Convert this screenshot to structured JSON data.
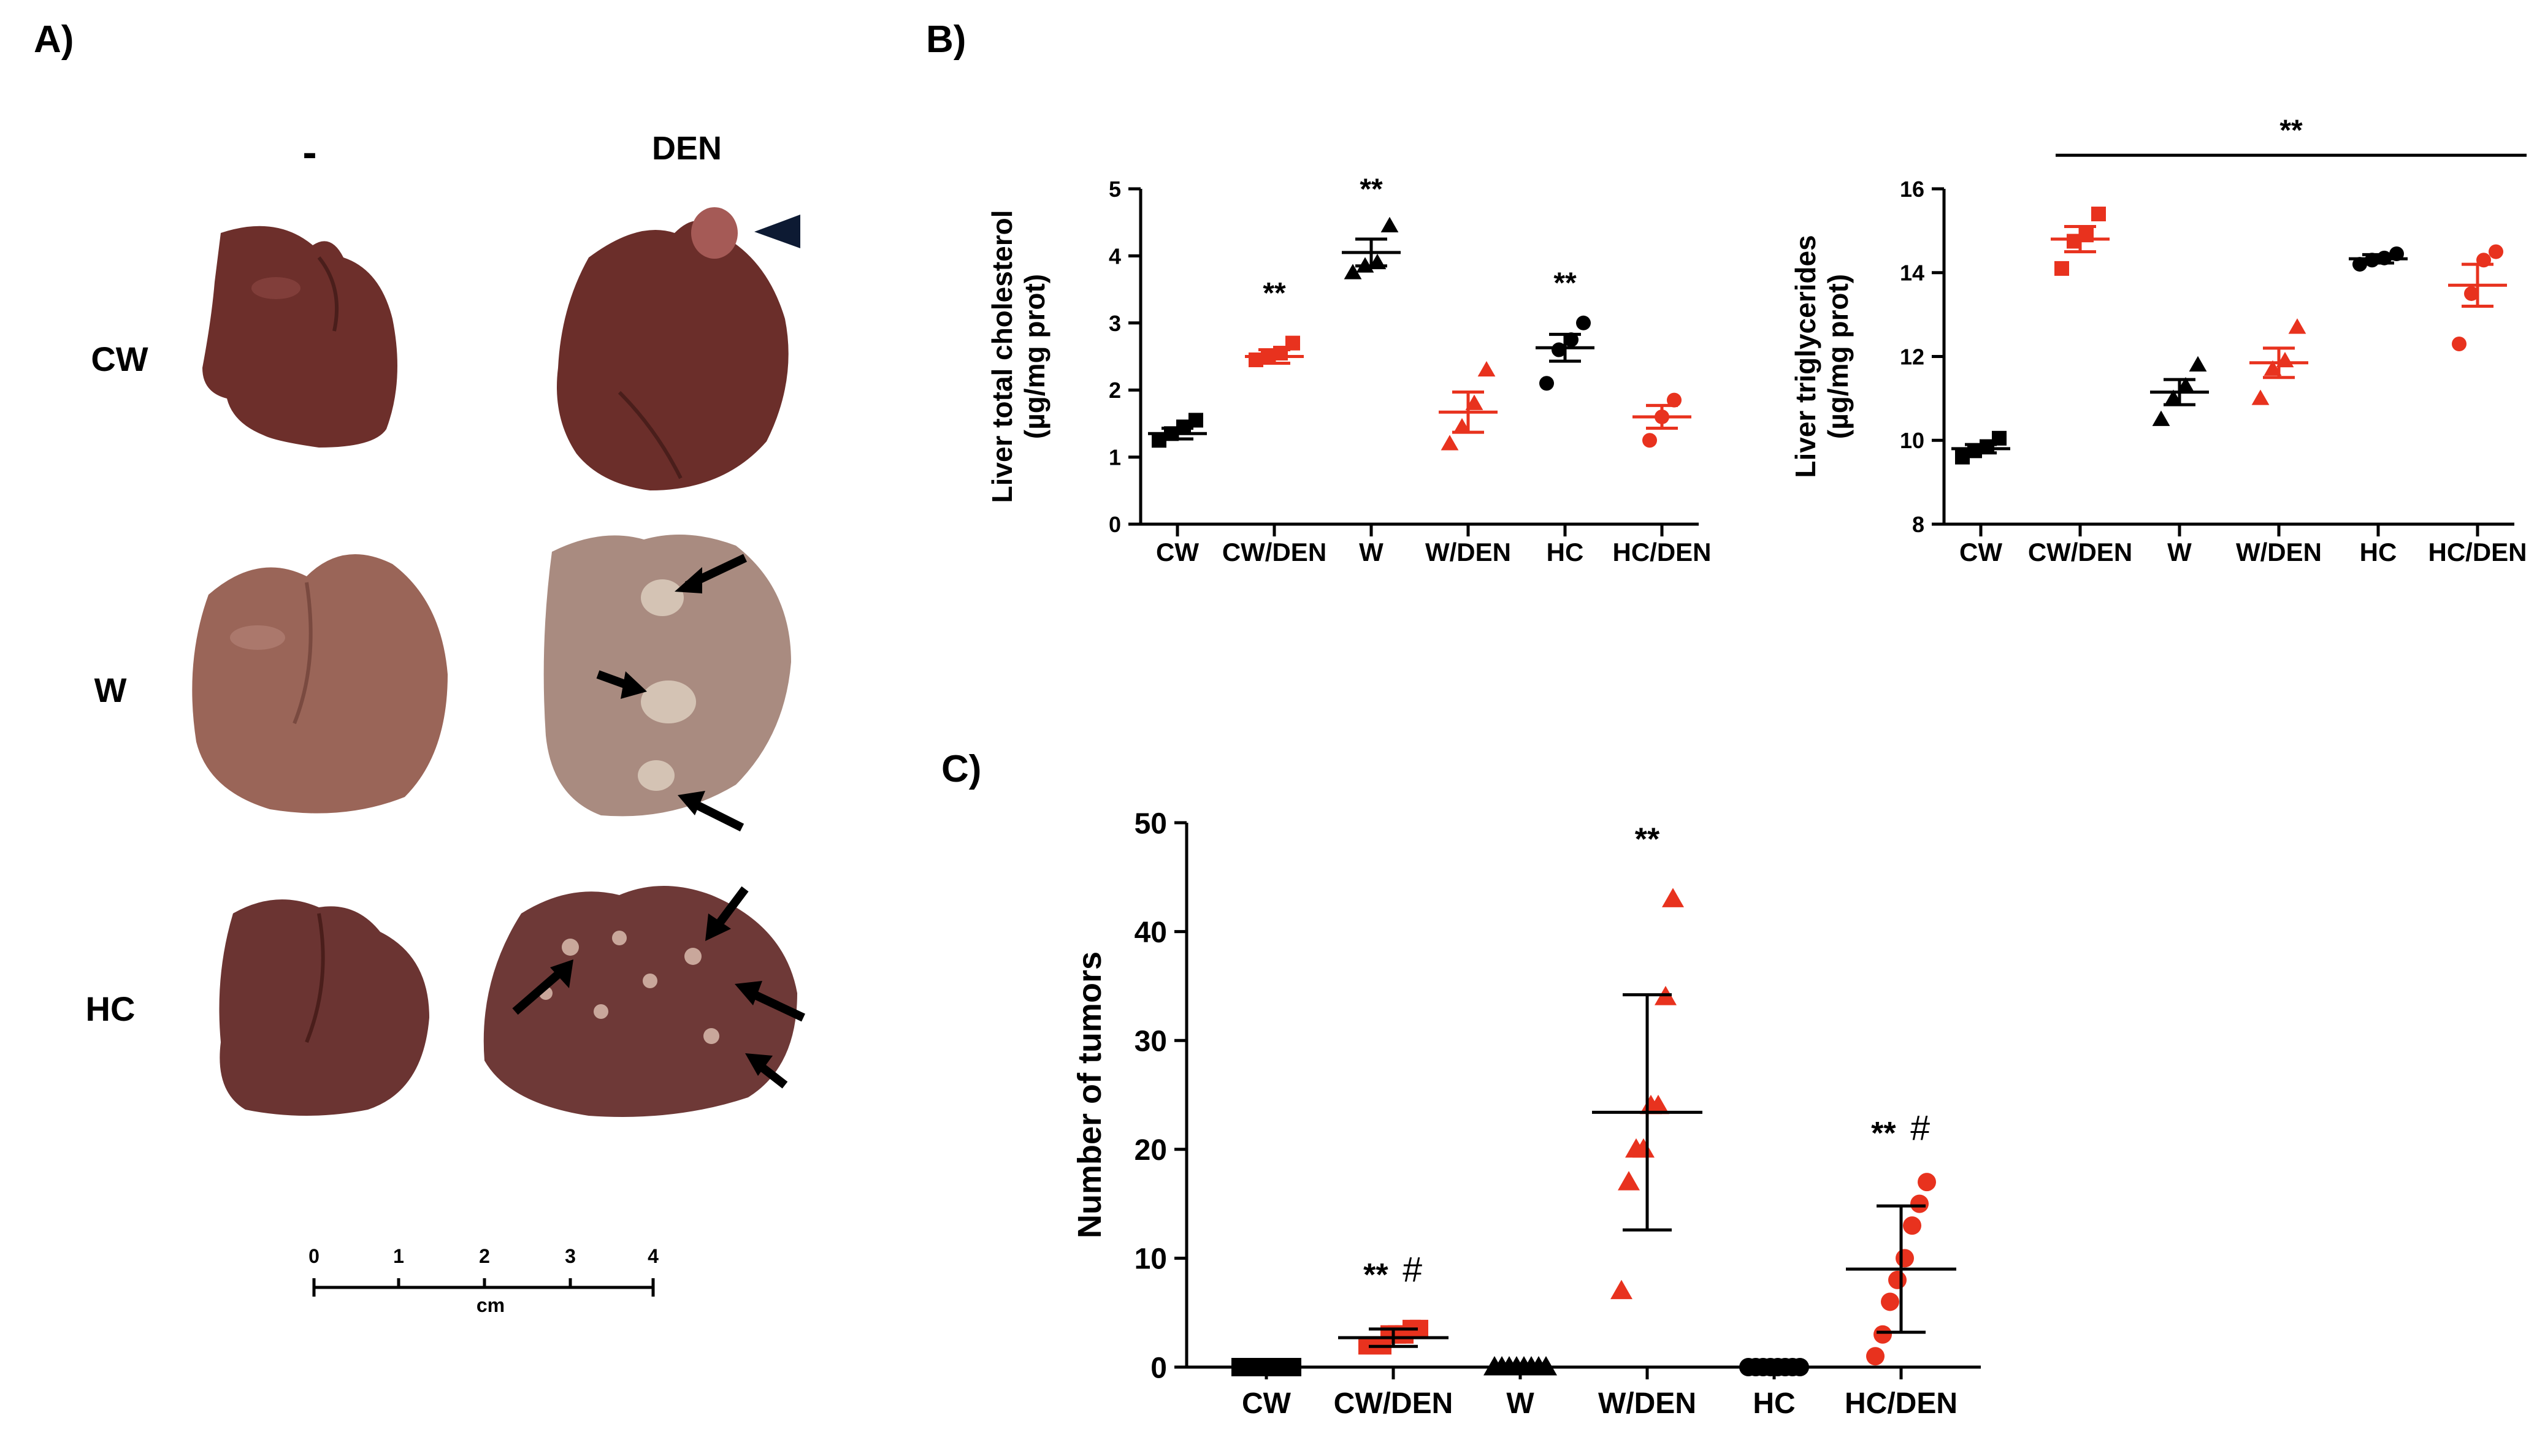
{
  "panel_a": {
    "label": "A)",
    "col_control": "-",
    "col_den": "DEN",
    "rows": [
      "CW",
      "W",
      "HC"
    ],
    "scale": {
      "ticks": [
        "0",
        "1",
        "2",
        "3",
        "4"
      ],
      "unit": "cm"
    },
    "colors": {
      "cw": "#6d2f2b",
      "w": "#9a6558",
      "hc": "#6b3432",
      "nodule": "#c9a79b"
    }
  },
  "chart_data": [
    {
      "id": "B1",
      "panel_label": "B)",
      "type": "scatter",
      "categories": [
        "CW",
        "CW/DEN",
        "W",
        "W/DEN",
        "HC",
        "HC/DEN"
      ],
      "ylabel_line1": "Liver total cholesterol",
      "ylabel_line2": "(µg/mg prot)",
      "ylim": [
        0,
        5
      ],
      "yticks": [
        0,
        1,
        2,
        3,
        4,
        5
      ],
      "tick_labels": [
        "0",
        "1",
        "2",
        "3",
        "4",
        "5"
      ],
      "groups": [
        {
          "name": "CW",
          "marker": "square",
          "color": "#000000",
          "points": [
            1.25,
            1.35,
            1.45,
            1.55
          ],
          "mean": 1.35,
          "sem": 0.08
        },
        {
          "name": "CW/DEN",
          "marker": "square",
          "color": "#e8321e",
          "points": [
            2.45,
            2.5,
            2.55,
            2.7
          ],
          "mean": 2.5,
          "sem": 0.1
        },
        {
          "name": "W",
          "marker": "triangle",
          "color": "#000000",
          "points": [
            3.75,
            3.85,
            3.9,
            4.45
          ],
          "mean": 4.05,
          "sem": 0.2
        },
        {
          "name": "W/DEN",
          "marker": "triangle",
          "color": "#e8321e",
          "points": [
            1.2,
            1.45,
            1.8,
            2.3
          ],
          "mean": 1.67,
          "sem": 0.3
        },
        {
          "name": "HC",
          "marker": "circle",
          "color": "#000000",
          "points": [
            2.1,
            2.6,
            2.75,
            3.0
          ],
          "mean": 2.63,
          "sem": 0.2
        },
        {
          "name": "HC/DEN",
          "marker": "circle",
          "color": "#e8321e",
          "points": [
            1.25,
            1.6,
            1.85
          ],
          "mean": 1.6,
          "sem": 0.17
        }
      ],
      "annotations": [
        {
          "category": "CW/DEN",
          "value": 3.3,
          "text": "**"
        },
        {
          "category": "W",
          "value": 4.85,
          "text": "**"
        },
        {
          "category": "HC",
          "value": 3.45,
          "text": "**"
        }
      ]
    },
    {
      "id": "B2",
      "type": "scatter",
      "categories": [
        "CW",
        "CW/DEN",
        "W",
        "W/DEN",
        "HC",
        "HC/DEN"
      ],
      "ylabel_line1": "Liver triglycerides",
      "ylabel_line2": "(µg/mg prot)",
      "ylim": [
        8,
        16
      ],
      "yticks": [
        8,
        10,
        12,
        14,
        16
      ],
      "tick_labels": [
        "8",
        "10",
        "12",
        "14",
        "16"
      ],
      "groups": [
        {
          "name": "CW",
          "marker": "square",
          "color": "#000000",
          "points": [
            9.6,
            9.75,
            9.85,
            10.05
          ],
          "mean": 9.8,
          "sem": 0.1
        },
        {
          "name": "CW/DEN",
          "marker": "square",
          "color": "#e8321e",
          "points": [
            14.1,
            14.75,
            14.9,
            15.4
          ],
          "mean": 14.8,
          "sem": 0.3
        },
        {
          "name": "W",
          "marker": "triangle",
          "color": "#000000",
          "points": [
            10.5,
            11.0,
            11.3,
            11.8
          ],
          "mean": 11.15,
          "sem": 0.3
        },
        {
          "name": "W/DEN",
          "marker": "triangle",
          "color": "#e8321e",
          "points": [
            11.0,
            11.7,
            11.9,
            12.7
          ],
          "mean": 11.85,
          "sem": 0.35
        },
        {
          "name": "HC",
          "marker": "circle",
          "color": "#000000",
          "points": [
            14.2,
            14.3,
            14.35,
            14.45
          ],
          "mean": 14.33,
          "sem": 0.1
        },
        {
          "name": "HC/DEN",
          "marker": "circle",
          "color": "#e8321e",
          "points": [
            12.3,
            13.5,
            14.3,
            14.5
          ],
          "mean": 13.7,
          "sem": 0.5
        }
      ],
      "bracket": {
        "from": "CW/DEN",
        "to": "HC/DEN",
        "value": 16.8,
        "text": "**"
      }
    },
    {
      "id": "C",
      "panel_label": "C)",
      "type": "scatter",
      "categories": [
        "CW",
        "CW/DEN",
        "W",
        "W/DEN",
        "HC",
        "HC/DEN"
      ],
      "ylabel": "Number of tumors",
      "ylim": [
        0,
        50
      ],
      "yticks": [
        0,
        10,
        20,
        30,
        40,
        50
      ],
      "tick_labels": [
        "0",
        "10",
        "20",
        "30",
        "40",
        "50"
      ],
      "groups": [
        {
          "name": "CW",
          "marker": "square",
          "color": "#000000",
          "points": [
            0,
            0,
            0,
            0,
            0,
            0,
            0,
            0
          ],
          "mean": 0,
          "sd": 0
        },
        {
          "name": "CW/DEN",
          "marker": "square",
          "color": "#e8321e",
          "points": [
            2,
            2,
            2,
            3,
            3,
            3,
            3.5,
            3.5
          ],
          "mean": 2.7,
          "sd": 0.8
        },
        {
          "name": "W",
          "marker": "triangle",
          "color": "#000000",
          "points": [
            0,
            0,
            0,
            0,
            0,
            0,
            0,
            0
          ],
          "mean": 0,
          "sd": 0
        },
        {
          "name": "W/DEN",
          "marker": "triangle",
          "color": "#e8321e",
          "points": [
            7,
            17,
            20,
            20,
            24,
            24,
            34,
            43
          ],
          "mean": 23.4,
          "sd": 10.8
        },
        {
          "name": "HC",
          "marker": "circle",
          "color": "#000000",
          "points": [
            0,
            0,
            0,
            0,
            0,
            0,
            0,
            0
          ],
          "mean": 0,
          "sd": 0
        },
        {
          "name": "HC/DEN",
          "marker": "circle",
          "color": "#e8321e",
          "points": [
            1,
            3,
            6,
            8,
            10,
            13,
            15,
            17
          ],
          "mean": 9,
          "sd": 5.8
        }
      ],
      "annotations": [
        {
          "category": "CW/DEN",
          "value": 7.5,
          "text": "**",
          "hash": "#"
        },
        {
          "category": "W/DEN",
          "value": 47.5,
          "text": "**"
        },
        {
          "category": "HC/DEN",
          "value": 20.5,
          "text": "**",
          "hash": "#"
        }
      ]
    }
  ]
}
